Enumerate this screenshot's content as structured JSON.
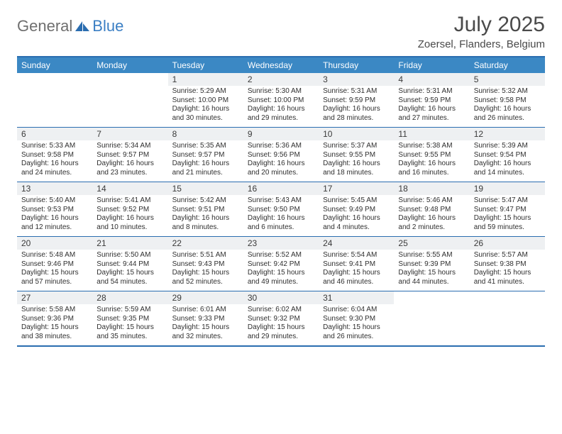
{
  "logo": {
    "general": "General",
    "blue": "Blue"
  },
  "title": "July 2025",
  "location": "Zoersel, Flanders, Belgium",
  "colors": {
    "header_bg": "#3b88c4",
    "border": "#2a6db0",
    "daynum_bg": "#eef0f2",
    "text": "#3a3a3a"
  },
  "daysOfWeek": [
    "Sunday",
    "Monday",
    "Tuesday",
    "Wednesday",
    "Thursday",
    "Friday",
    "Saturday"
  ],
  "weeks": [
    [
      {
        "empty": true
      },
      {
        "empty": true
      },
      {
        "n": "1",
        "sunrise": "Sunrise: 5:29 AM",
        "sunset": "Sunset: 10:00 PM",
        "day1": "Daylight: 16 hours",
        "day2": "and 30 minutes."
      },
      {
        "n": "2",
        "sunrise": "Sunrise: 5:30 AM",
        "sunset": "Sunset: 10:00 PM",
        "day1": "Daylight: 16 hours",
        "day2": "and 29 minutes."
      },
      {
        "n": "3",
        "sunrise": "Sunrise: 5:31 AM",
        "sunset": "Sunset: 9:59 PM",
        "day1": "Daylight: 16 hours",
        "day2": "and 28 minutes."
      },
      {
        "n": "4",
        "sunrise": "Sunrise: 5:31 AM",
        "sunset": "Sunset: 9:59 PM",
        "day1": "Daylight: 16 hours",
        "day2": "and 27 minutes."
      },
      {
        "n": "5",
        "sunrise": "Sunrise: 5:32 AM",
        "sunset": "Sunset: 9:58 PM",
        "day1": "Daylight: 16 hours",
        "day2": "and 26 minutes."
      }
    ],
    [
      {
        "n": "6",
        "sunrise": "Sunrise: 5:33 AM",
        "sunset": "Sunset: 9:58 PM",
        "day1": "Daylight: 16 hours",
        "day2": "and 24 minutes."
      },
      {
        "n": "7",
        "sunrise": "Sunrise: 5:34 AM",
        "sunset": "Sunset: 9:57 PM",
        "day1": "Daylight: 16 hours",
        "day2": "and 23 minutes."
      },
      {
        "n": "8",
        "sunrise": "Sunrise: 5:35 AM",
        "sunset": "Sunset: 9:57 PM",
        "day1": "Daylight: 16 hours",
        "day2": "and 21 minutes."
      },
      {
        "n": "9",
        "sunrise": "Sunrise: 5:36 AM",
        "sunset": "Sunset: 9:56 PM",
        "day1": "Daylight: 16 hours",
        "day2": "and 20 minutes."
      },
      {
        "n": "10",
        "sunrise": "Sunrise: 5:37 AM",
        "sunset": "Sunset: 9:55 PM",
        "day1": "Daylight: 16 hours",
        "day2": "and 18 minutes."
      },
      {
        "n": "11",
        "sunrise": "Sunrise: 5:38 AM",
        "sunset": "Sunset: 9:55 PM",
        "day1": "Daylight: 16 hours",
        "day2": "and 16 minutes."
      },
      {
        "n": "12",
        "sunrise": "Sunrise: 5:39 AM",
        "sunset": "Sunset: 9:54 PM",
        "day1": "Daylight: 16 hours",
        "day2": "and 14 minutes."
      }
    ],
    [
      {
        "n": "13",
        "sunrise": "Sunrise: 5:40 AM",
        "sunset": "Sunset: 9:53 PM",
        "day1": "Daylight: 16 hours",
        "day2": "and 12 minutes."
      },
      {
        "n": "14",
        "sunrise": "Sunrise: 5:41 AM",
        "sunset": "Sunset: 9:52 PM",
        "day1": "Daylight: 16 hours",
        "day2": "and 10 minutes."
      },
      {
        "n": "15",
        "sunrise": "Sunrise: 5:42 AM",
        "sunset": "Sunset: 9:51 PM",
        "day1": "Daylight: 16 hours",
        "day2": "and 8 minutes."
      },
      {
        "n": "16",
        "sunrise": "Sunrise: 5:43 AM",
        "sunset": "Sunset: 9:50 PM",
        "day1": "Daylight: 16 hours",
        "day2": "and 6 minutes."
      },
      {
        "n": "17",
        "sunrise": "Sunrise: 5:45 AM",
        "sunset": "Sunset: 9:49 PM",
        "day1": "Daylight: 16 hours",
        "day2": "and 4 minutes."
      },
      {
        "n": "18",
        "sunrise": "Sunrise: 5:46 AM",
        "sunset": "Sunset: 9:48 PM",
        "day1": "Daylight: 16 hours",
        "day2": "and 2 minutes."
      },
      {
        "n": "19",
        "sunrise": "Sunrise: 5:47 AM",
        "sunset": "Sunset: 9:47 PM",
        "day1": "Daylight: 15 hours",
        "day2": "and 59 minutes."
      }
    ],
    [
      {
        "n": "20",
        "sunrise": "Sunrise: 5:48 AM",
        "sunset": "Sunset: 9:46 PM",
        "day1": "Daylight: 15 hours",
        "day2": "and 57 minutes."
      },
      {
        "n": "21",
        "sunrise": "Sunrise: 5:50 AM",
        "sunset": "Sunset: 9:44 PM",
        "day1": "Daylight: 15 hours",
        "day2": "and 54 minutes."
      },
      {
        "n": "22",
        "sunrise": "Sunrise: 5:51 AM",
        "sunset": "Sunset: 9:43 PM",
        "day1": "Daylight: 15 hours",
        "day2": "and 52 minutes."
      },
      {
        "n": "23",
        "sunrise": "Sunrise: 5:52 AM",
        "sunset": "Sunset: 9:42 PM",
        "day1": "Daylight: 15 hours",
        "day2": "and 49 minutes."
      },
      {
        "n": "24",
        "sunrise": "Sunrise: 5:54 AM",
        "sunset": "Sunset: 9:41 PM",
        "day1": "Daylight: 15 hours",
        "day2": "and 46 minutes."
      },
      {
        "n": "25",
        "sunrise": "Sunrise: 5:55 AM",
        "sunset": "Sunset: 9:39 PM",
        "day1": "Daylight: 15 hours",
        "day2": "and 44 minutes."
      },
      {
        "n": "26",
        "sunrise": "Sunrise: 5:57 AM",
        "sunset": "Sunset: 9:38 PM",
        "day1": "Daylight: 15 hours",
        "day2": "and 41 minutes."
      }
    ],
    [
      {
        "n": "27",
        "sunrise": "Sunrise: 5:58 AM",
        "sunset": "Sunset: 9:36 PM",
        "day1": "Daylight: 15 hours",
        "day2": "and 38 minutes."
      },
      {
        "n": "28",
        "sunrise": "Sunrise: 5:59 AM",
        "sunset": "Sunset: 9:35 PM",
        "day1": "Daylight: 15 hours",
        "day2": "and 35 minutes."
      },
      {
        "n": "29",
        "sunrise": "Sunrise: 6:01 AM",
        "sunset": "Sunset: 9:33 PM",
        "day1": "Daylight: 15 hours",
        "day2": "and 32 minutes."
      },
      {
        "n": "30",
        "sunrise": "Sunrise: 6:02 AM",
        "sunset": "Sunset: 9:32 PM",
        "day1": "Daylight: 15 hours",
        "day2": "and 29 minutes."
      },
      {
        "n": "31",
        "sunrise": "Sunrise: 6:04 AM",
        "sunset": "Sunset: 9:30 PM",
        "day1": "Daylight: 15 hours",
        "day2": "and 26 minutes."
      },
      {
        "empty": true
      },
      {
        "empty": true
      }
    ]
  ]
}
